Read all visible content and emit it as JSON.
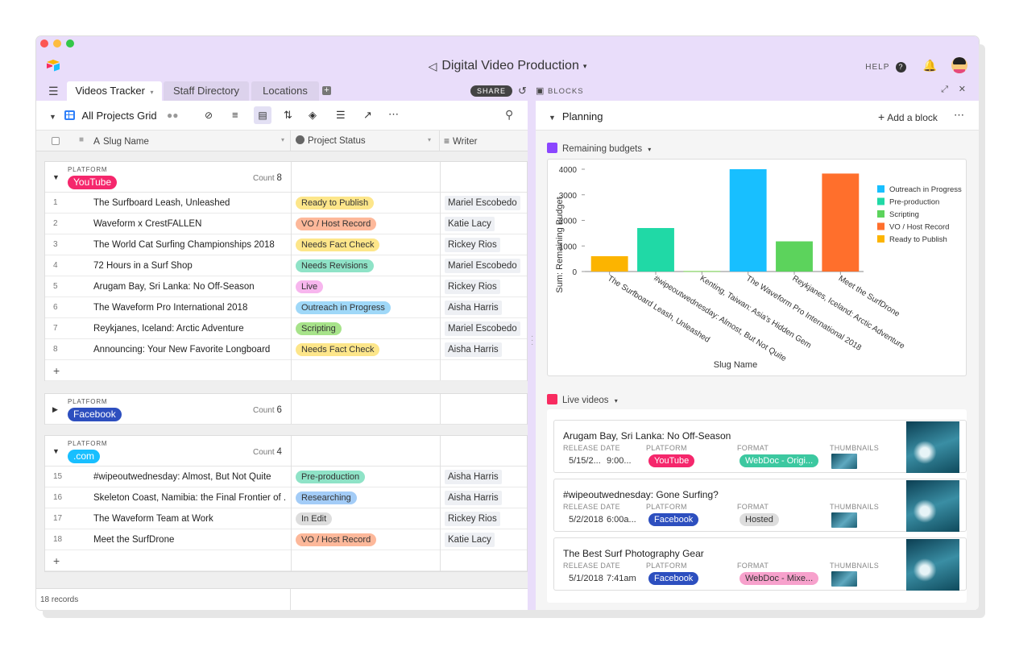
{
  "app": {
    "title": "Digital Video Production",
    "help_label": "HELP",
    "share_label": "SHARE",
    "blocks_label": "BLOCKS"
  },
  "tabs": [
    {
      "label": "Videos Tracker"
    },
    {
      "label": "Staff Directory"
    },
    {
      "label": "Locations"
    }
  ],
  "view": {
    "name": "All Projects Grid"
  },
  "columns": {
    "slug": "Slug Name",
    "status": "Project Status",
    "writer": "Writer"
  },
  "groups": [
    {
      "label": "PLATFORM",
      "name": "YouTube",
      "color": "#f5276c",
      "count_label": "Count",
      "count": "8",
      "rows": [
        {
          "n": "1",
          "slug": "The Surfboard Leash, Unleashed",
          "status": "Ready to Publish",
          "status_color": "#fde68a",
          "writer": "Mariel Escobedo"
        },
        {
          "n": "2",
          "slug": "Waveform x CrestFALLEN",
          "status": "VO / Host Record",
          "status_color": "#fdb89a",
          "writer": "Katie Lacy"
        },
        {
          "n": "3",
          "slug": "The World Cat Surfing Championships 2018",
          "status": "Needs Fact Check",
          "status_color": "#fde68a",
          "writer": "Rickey Rios"
        },
        {
          "n": "4",
          "slug": "72 Hours in a Surf Shop",
          "status": "Needs Revisions",
          "status_color": "#8fe3c7",
          "writer": "Mariel Escobedo"
        },
        {
          "n": "5",
          "slug": "Arugam Bay, Sri Lanka: No Off-Season",
          "status": "Live",
          "status_color": "#f7b6ee",
          "writer": "Rickey Rios"
        },
        {
          "n": "6",
          "slug": "The Waveform Pro International 2018",
          "status": "Outreach in Progress",
          "status_color": "#9fd8f8",
          "writer": "Aisha Harris"
        },
        {
          "n": "7",
          "slug": "Reykjanes, Iceland: Arctic Adventure",
          "status": "Scripting",
          "status_color": "#a7e38a",
          "writer": "Mariel Escobedo"
        },
        {
          "n": "8",
          "slug": "Announcing: Your New Favorite Longboard",
          "status": "Needs Fact Check",
          "status_color": "#fde68a",
          "writer": "Aisha Harris"
        }
      ]
    },
    {
      "label": "PLATFORM",
      "name": "Facebook",
      "color": "#2d4fbf",
      "count_label": "Count",
      "count": "6",
      "rows": []
    },
    {
      "label": "PLATFORM",
      "name": ".com",
      "color": "#18bfff",
      "count_label": "Count",
      "count": "4",
      "rows": [
        {
          "n": "15",
          "slug": "#wipeoutwednesday: Almost, But Not Quite",
          "status": "Pre-production",
          "status_color": "#8fe3c7",
          "writer": "Aisha Harris"
        },
        {
          "n": "16",
          "slug": "Skeleton Coast, Namibia: the Final Frontier of ...",
          "status": "Researching",
          "status_color": "#a3ccf7",
          "writer": "Aisha Harris"
        },
        {
          "n": "17",
          "slug": "The Waveform Team at Work",
          "status": "In Edit",
          "status_color": "#dddddd",
          "writer": "Rickey Rios"
        },
        {
          "n": "18",
          "slug": "Meet the SurfDrone",
          "status": "VO / Host Record",
          "status_color": "#fdb89a",
          "writer": "Katie Lacy"
        }
      ]
    }
  ],
  "footer": {
    "records": "18 records"
  },
  "planning": {
    "title": "Planning",
    "add_block": "Add a block"
  },
  "chart_block": {
    "title": "Remaining budgets"
  },
  "chart_data": {
    "type": "bar",
    "xlabel": "Slug Name",
    "ylabel": "Sum: Remaining Budget",
    "ylim": [
      0,
      4000
    ],
    "yticks": [
      "0",
      "1000",
      "2000",
      "3000",
      "4000"
    ],
    "legend_position": "right",
    "categories": [
      "The Surfboard Leash, Unleashed",
      "#wipeoutwednesday: Almost, But Not Quite",
      "Kenting, Taiwan: Asia's Hidden Gem",
      "The Waveform Pro International 2018",
      "Reykjanes, Iceland: Arctic Adventure",
      "Meet the SurfDrone"
    ],
    "values": [
      600,
      1700,
      20,
      4000,
      1180,
      3830
    ],
    "bar_colors": [
      "#fcb400",
      "#20d9a6",
      "#7bd64f",
      "#18bfff",
      "#5cd35c",
      "#ff6f2c"
    ],
    "legend": [
      {
        "name": "Outreach in Progress",
        "color": "#18bfff"
      },
      {
        "name": "Pre-production",
        "color": "#20d9a6"
      },
      {
        "name": "Scripting",
        "color": "#5cd35c"
      },
      {
        "name": "VO / Host Record",
        "color": "#ff6f2c"
      },
      {
        "name": "Ready to Publish",
        "color": "#fcb400"
      }
    ]
  },
  "live_block": {
    "title": "Live videos",
    "labels": {
      "release": "RELEASE DATE",
      "platform": "PLATFORM",
      "format": "FORMAT",
      "thumbs": "THUMBNAILS"
    },
    "cards": [
      {
        "title": "Arugam Bay, Sri Lanka: No Off-Season",
        "date": "5/15/2...",
        "time": "9:00...",
        "platform": "YouTube",
        "platform_color": "#f5276c",
        "format": "WebDoc - Origi...",
        "format_color": "#3cc8a0",
        "format_text": "#ffffff"
      },
      {
        "title": "#wipeoutwednesday: Gone Surfing?",
        "date": "5/2/2018",
        "time": "6:00a...",
        "platform": "Facebook",
        "platform_color": "#2d4fbf",
        "format": "Hosted",
        "format_color": "#dddddd",
        "format_text": "#333333"
      },
      {
        "title": "The Best Surf Photography Gear",
        "date": "5/1/2018",
        "time": "7:41am",
        "platform": "Facebook",
        "platform_color": "#2d4fbf",
        "format": "WebDoc - Mixe...",
        "format_color": "#f7a1cc",
        "format_text": "#333333"
      }
    ]
  }
}
